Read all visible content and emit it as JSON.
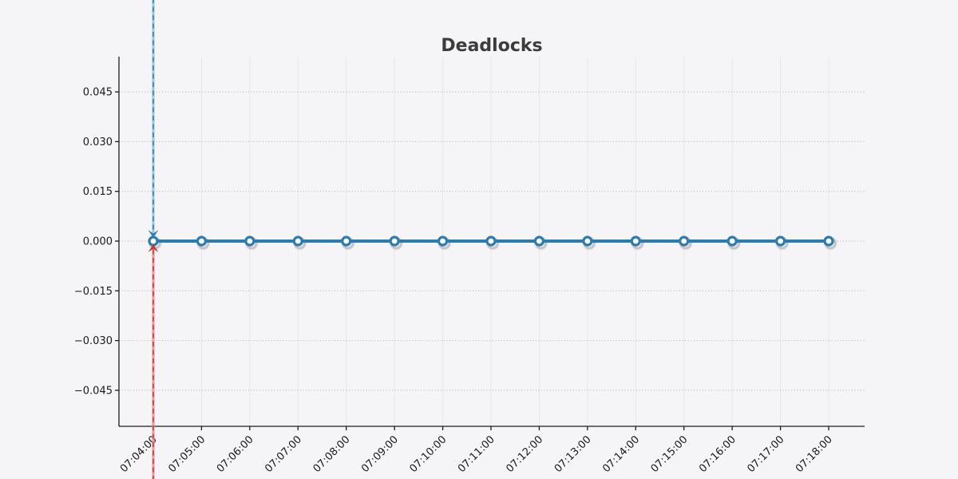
{
  "chart_data": {
    "type": "line",
    "title": "Deadlocks",
    "xlabel": "",
    "ylabel": "",
    "x": [
      "07:04:00",
      "07:05:00",
      "07:06:00",
      "07:07:00",
      "07:08:00",
      "07:09:00",
      "07:10:00",
      "07:11:00",
      "07:12:00",
      "07:13:00",
      "07:14:00",
      "07:15:00",
      "07:16:00",
      "07:17:00",
      "07:18:00"
    ],
    "series": [
      {
        "name": "Deadlocks",
        "values": [
          0,
          0,
          0,
          0,
          0,
          0,
          0,
          0,
          0,
          0,
          0,
          0,
          0,
          0,
          0
        ]
      }
    ],
    "ylim": [
      -0.056,
      0.056
    ],
    "yticks": {
      "values": [
        0.045,
        0.03,
        0.015,
        0.0,
        -0.015,
        -0.03,
        -0.045
      ],
      "labels": [
        "0.045",
        "0.030",
        "0.015",
        "0.000",
        "−0.015",
        "−0.030",
        "−0.045"
      ]
    },
    "grid": true,
    "legend_position": "none",
    "annotations": [
      {
        "id": "cursor-arrow-down",
        "x": "07:04:00",
        "target_value": 0,
        "direction": "down",
        "style": "dashed-vline-arrow",
        "light_color": "#9dc6e0",
        "dash_color": "#3b85bd",
        "arrow_color": "#2f7fb8"
      },
      {
        "id": "cursor-arrow-up",
        "x": "07:04:00",
        "target_value": 0,
        "direction": "up",
        "style": "dashed-vline-arrow",
        "light_color": "#e89898",
        "dash_color": "#c24646",
        "arrow_color": "#c0392b"
      }
    ],
    "colors": {
      "background": "#f5f5f7",
      "line": "#2d7cb0",
      "marker_fill": "#ffffff",
      "marker_stroke": "#2d7cb0",
      "shadow": "#8a8a8a",
      "grid_horizontal": "#ababab",
      "grid_vertical": "#e7e7ea",
      "axis": "#1c1c1c",
      "tick_label": "#1a1a1a",
      "title": "#3c3c3c"
    }
  }
}
